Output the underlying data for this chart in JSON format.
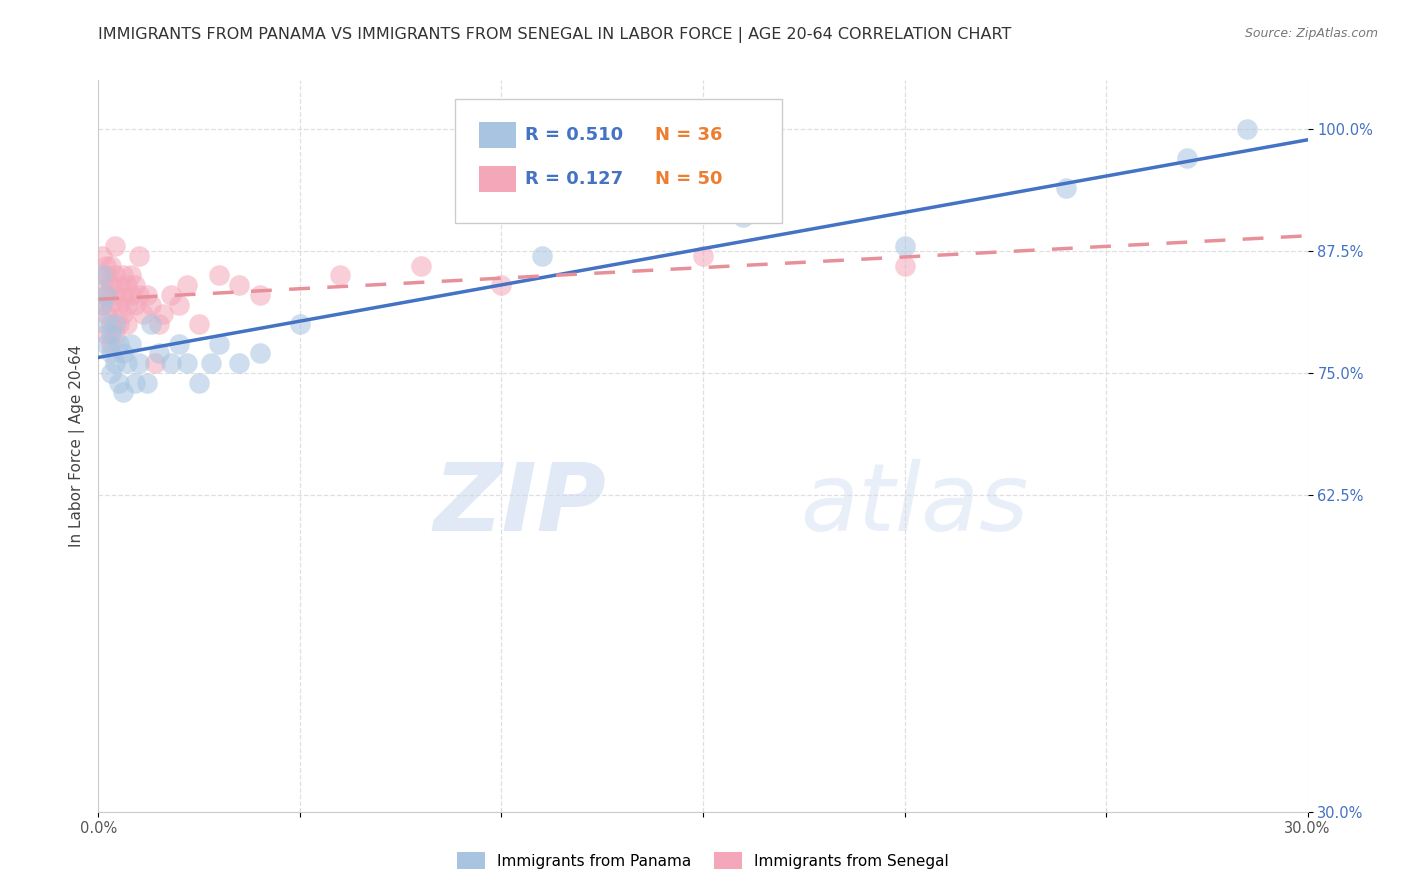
{
  "title": "IMMIGRANTS FROM PANAMA VS IMMIGRANTS FROM SENEGAL IN LABOR FORCE | AGE 20-64 CORRELATION CHART",
  "source": "Source: ZipAtlas.com",
  "ylabel": "In Labor Force | Age 20-64",
  "xlim": [
    0.0,
    0.3
  ],
  "ylim": [
    0.3,
    1.05
  ],
  "xticks": [
    0.0,
    0.05,
    0.1,
    0.15,
    0.2,
    0.25,
    0.3
  ],
  "xticklabels": [
    "0.0%",
    "",
    "",
    "",
    "",
    "",
    "30.0%"
  ],
  "yticks": [
    0.3,
    0.625,
    0.75,
    0.875,
    1.0
  ],
  "yticklabels": [
    "30.0%",
    "62.5%",
    "75.0%",
    "87.5%",
    "100.0%"
  ],
  "panama_color": "#a8c4e0",
  "senegal_color": "#f4a7b9",
  "panama_line_color": "#4472c4",
  "senegal_line_color": "#e8909a",
  "panama_label": "Immigrants from Panama",
  "senegal_label": "Immigrants from Senegal",
  "R_panama": "0.510",
  "N_panama": "36",
  "R_senegal": "0.127",
  "N_senegal": "50",
  "legend_R_color": "#4472c4",
  "legend_N_color": "#ed7d31",
  "background_color": "#ffffff",
  "grid_color": "#d8d8d8",
  "watermark_zip": "ZIP",
  "watermark_atlas": "atlas",
  "title_fontsize": 11.5,
  "axis_label_fontsize": 11,
  "tick_fontsize": 10.5,
  "panama_x": [
    0.001,
    0.001,
    0.002,
    0.002,
    0.002,
    0.003,
    0.003,
    0.003,
    0.004,
    0.004,
    0.005,
    0.005,
    0.006,
    0.006,
    0.007,
    0.008,
    0.009,
    0.01,
    0.012,
    0.013,
    0.015,
    0.018,
    0.02,
    0.022,
    0.025,
    0.028,
    0.03,
    0.035,
    0.04,
    0.05,
    0.11,
    0.16,
    0.2,
    0.24,
    0.27,
    0.285
  ],
  "panama_y": [
    0.82,
    0.85,
    0.83,
    0.8,
    0.78,
    0.79,
    0.77,
    0.75,
    0.8,
    0.76,
    0.78,
    0.74,
    0.77,
    0.73,
    0.76,
    0.78,
    0.74,
    0.76,
    0.74,
    0.8,
    0.77,
    0.76,
    0.78,
    0.76,
    0.74,
    0.76,
    0.78,
    0.76,
    0.77,
    0.8,
    0.87,
    0.91,
    0.88,
    0.94,
    0.97,
    1.0
  ],
  "senegal_x": [
    0.001,
    0.001,
    0.001,
    0.002,
    0.002,
    0.002,
    0.002,
    0.002,
    0.003,
    0.003,
    0.003,
    0.003,
    0.003,
    0.004,
    0.004,
    0.004,
    0.004,
    0.005,
    0.005,
    0.005,
    0.006,
    0.006,
    0.006,
    0.007,
    0.007,
    0.007,
    0.008,
    0.008,
    0.009,
    0.009,
    0.01,
    0.01,
    0.011,
    0.012,
    0.013,
    0.014,
    0.015,
    0.016,
    0.018,
    0.02,
    0.022,
    0.025,
    0.03,
    0.035,
    0.04,
    0.06,
    0.08,
    0.1,
    0.15,
    0.2
  ],
  "senegal_y": [
    0.82,
    0.84,
    0.87,
    0.85,
    0.83,
    0.81,
    0.86,
    0.79,
    0.84,
    0.82,
    0.86,
    0.8,
    0.78,
    0.85,
    0.83,
    0.88,
    0.79,
    0.84,
    0.82,
    0.8,
    0.85,
    0.83,
    0.81,
    0.84,
    0.82,
    0.8,
    0.85,
    0.83,
    0.84,
    0.82,
    0.83,
    0.87,
    0.81,
    0.83,
    0.82,
    0.76,
    0.8,
    0.81,
    0.83,
    0.82,
    0.84,
    0.8,
    0.85,
    0.84,
    0.83,
    0.85,
    0.86,
    0.84,
    0.87,
    0.86
  ]
}
